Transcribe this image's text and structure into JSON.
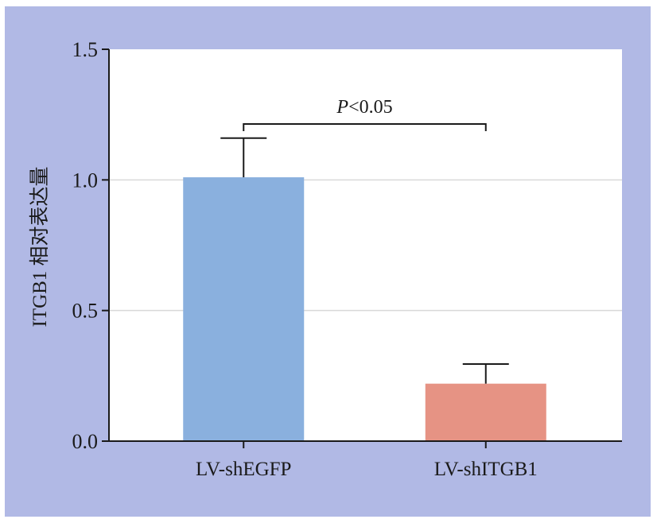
{
  "colors": {
    "background": "#b1b9e5",
    "plot_area": "#ffffff",
    "grid": "#d9d9d9",
    "axis": "#1a1a1a"
  },
  "chart_data": {
    "type": "bar",
    "categories": [
      "LV-shEGFP",
      "LV-shITGB1"
    ],
    "values": [
      1.01,
      0.22
    ],
    "error_upper": [
      1.16,
      0.295
    ],
    "bar_colors": [
      "#8ab0de",
      "#e69384"
    ],
    "ylabel": "ITGB1 相对表达量",
    "xlabel": "",
    "ylim": [
      0,
      1.5
    ],
    "yticks": [
      0.0,
      0.5,
      1.0,
      1.5
    ],
    "ytick_labels": [
      "0.0",
      "0.5",
      "1.0",
      "1.5"
    ],
    "grid": "horizontal",
    "significance": {
      "label_italic": "P",
      "label_rest": "<0.05",
      "between": [
        "LV-shEGFP",
        "LV-shITGB1"
      ]
    }
  }
}
